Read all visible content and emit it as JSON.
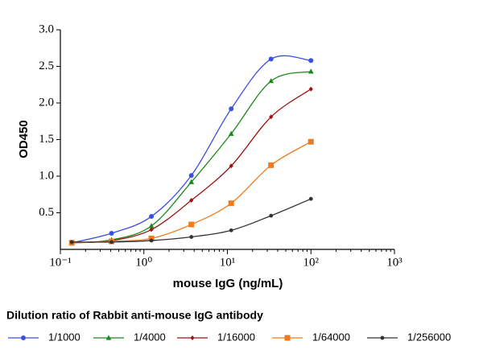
{
  "chart_data": {
    "type": "scatter",
    "y_label": "OD450",
    "x_label": "mouse IgG (ng/mL)",
    "legend_title": "Dilution ratio of Rabbit anti-mouse IgG antibody",
    "x": [
      0.137,
      0.41,
      1.23,
      3.7,
      11.1,
      33.3,
      100
    ],
    "series": [
      {
        "name": "1/1000",
        "color": "#3a50e0",
        "marker": "circle",
        "values": [
          0.09,
          0.22,
          0.45,
          1.01,
          1.92,
          2.6,
          2.58
        ]
      },
      {
        "name": "1/4000",
        "color": "#1a8a1a",
        "marker": "triangle",
        "values": [
          0.09,
          0.13,
          0.32,
          0.92,
          1.58,
          2.3,
          2.43
        ]
      },
      {
        "name": "1/16000",
        "color": "#a01414",
        "marker": "diamond",
        "values": [
          0.09,
          0.12,
          0.27,
          0.67,
          1.14,
          1.81,
          2.19
        ]
      },
      {
        "name": "1/64000",
        "color": "#f07a1e",
        "marker": "square",
        "values": [
          0.09,
          0.11,
          0.15,
          0.34,
          0.63,
          1.15,
          1.47
        ]
      },
      {
        "name": "1/256000",
        "color": "#333333",
        "marker": "dot",
        "values": [
          0.1,
          0.1,
          0.12,
          0.17,
          0.26,
          0.46,
          0.69
        ]
      }
    ],
    "xscale": "log",
    "xlim": [
      0.1,
      1000
    ],
    "xticks": [
      {
        "value": 0.1,
        "label": "10⁻¹"
      },
      {
        "value": 1,
        "label": "10⁰"
      },
      {
        "value": 10,
        "label": "10¹"
      },
      {
        "value": 100,
        "label": "10²"
      },
      {
        "value": 1000,
        "label": "10³"
      }
    ],
    "ylim": [
      0,
      3
    ],
    "yticks": [
      0.5,
      {
        "value": 1,
        "label": "1.0"
      },
      1.5,
      {
        "value": 2,
        "label": "2.0"
      },
      2.5,
      {
        "value": 3,
        "label": "3.0"
      }
    ]
  }
}
